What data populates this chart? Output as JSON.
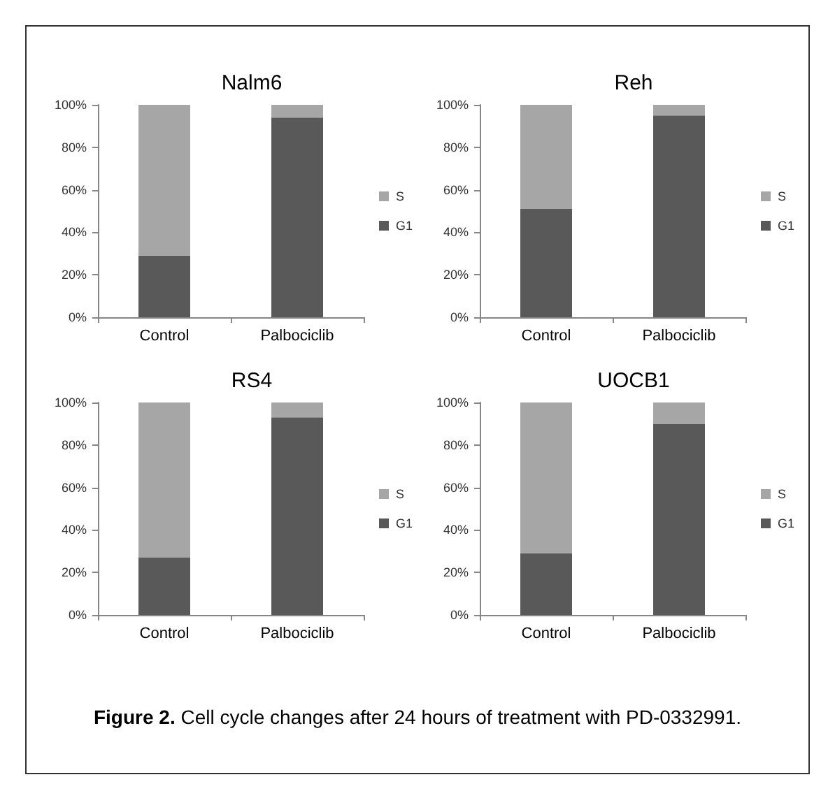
{
  "chart_data": [
    {
      "type": "bar",
      "title": "Nalm6",
      "categories": [
        "Control",
        "Palbociclib"
      ],
      "stacked": true,
      "legend": "right",
      "grid": false,
      "series": [
        {
          "name": "G1",
          "color": "#595959",
          "values": [
            29,
            94
          ]
        },
        {
          "name": "S",
          "color": "#a6a6a6",
          "values": [
            71,
            6
          ]
        }
      ],
      "ylim": [
        0,
        100
      ],
      "yticks": [
        {
          "value": 0,
          "label": "0%"
        },
        {
          "value": 20,
          "label": "20%"
        },
        {
          "value": 40,
          "label": "40%"
        },
        {
          "value": 60,
          "label": "60%"
        },
        {
          "value": 80,
          "label": "80%"
        },
        {
          "value": 100,
          "label": "100%"
        }
      ]
    },
    {
      "type": "bar",
      "title": "Reh",
      "categories": [
        "Control",
        "Palbociclib"
      ],
      "stacked": true,
      "legend": "right",
      "grid": false,
      "series": [
        {
          "name": "G1",
          "color": "#595959",
          "values": [
            51,
            95
          ]
        },
        {
          "name": "S",
          "color": "#a6a6a6",
          "values": [
            49,
            5
          ]
        }
      ],
      "ylim": [
        0,
        100
      ],
      "yticks": [
        {
          "value": 0,
          "label": "0%"
        },
        {
          "value": 20,
          "label": "20%"
        },
        {
          "value": 40,
          "label": "40%"
        },
        {
          "value": 60,
          "label": "60%"
        },
        {
          "value": 80,
          "label": "80%"
        },
        {
          "value": 100,
          "label": "100%"
        }
      ]
    },
    {
      "type": "bar",
      "title": "RS4",
      "categories": [
        "Control",
        "Palbociclib"
      ],
      "stacked": true,
      "legend": "right",
      "grid": false,
      "series": [
        {
          "name": "G1",
          "color": "#595959",
          "values": [
            27,
            93
          ]
        },
        {
          "name": "S",
          "color": "#a6a6a6",
          "values": [
            73,
            7
          ]
        }
      ],
      "ylim": [
        0,
        100
      ],
      "yticks": [
        {
          "value": 0,
          "label": "0%"
        },
        {
          "value": 20,
          "label": "20%"
        },
        {
          "value": 40,
          "label": "40%"
        },
        {
          "value": 60,
          "label": "60%"
        },
        {
          "value": 80,
          "label": "80%"
        },
        {
          "value": 100,
          "label": "100%"
        }
      ]
    },
    {
      "type": "bar",
      "title": "UOCB1",
      "categories": [
        "Control",
        "Palbociclib"
      ],
      "stacked": true,
      "legend": "right",
      "grid": false,
      "series": [
        {
          "name": "G1",
          "color": "#595959",
          "values": [
            29,
            90
          ]
        },
        {
          "name": "S",
          "color": "#a6a6a6",
          "values": [
            71,
            10
          ]
        }
      ],
      "ylim": [
        0,
        100
      ],
      "yticks": [
        {
          "value": 0,
          "label": "0%"
        },
        {
          "value": 20,
          "label": "20%"
        },
        {
          "value": 40,
          "label": "40%"
        },
        {
          "value": 60,
          "label": "60%"
        },
        {
          "value": 80,
          "label": "80%"
        },
        {
          "value": 100,
          "label": "100%"
        }
      ],
      "annotations": [
        "Figure 2.",
        "Cell cycle changes after 24 hours of treatment with PD-0332991."
      ]
    }
  ]
}
